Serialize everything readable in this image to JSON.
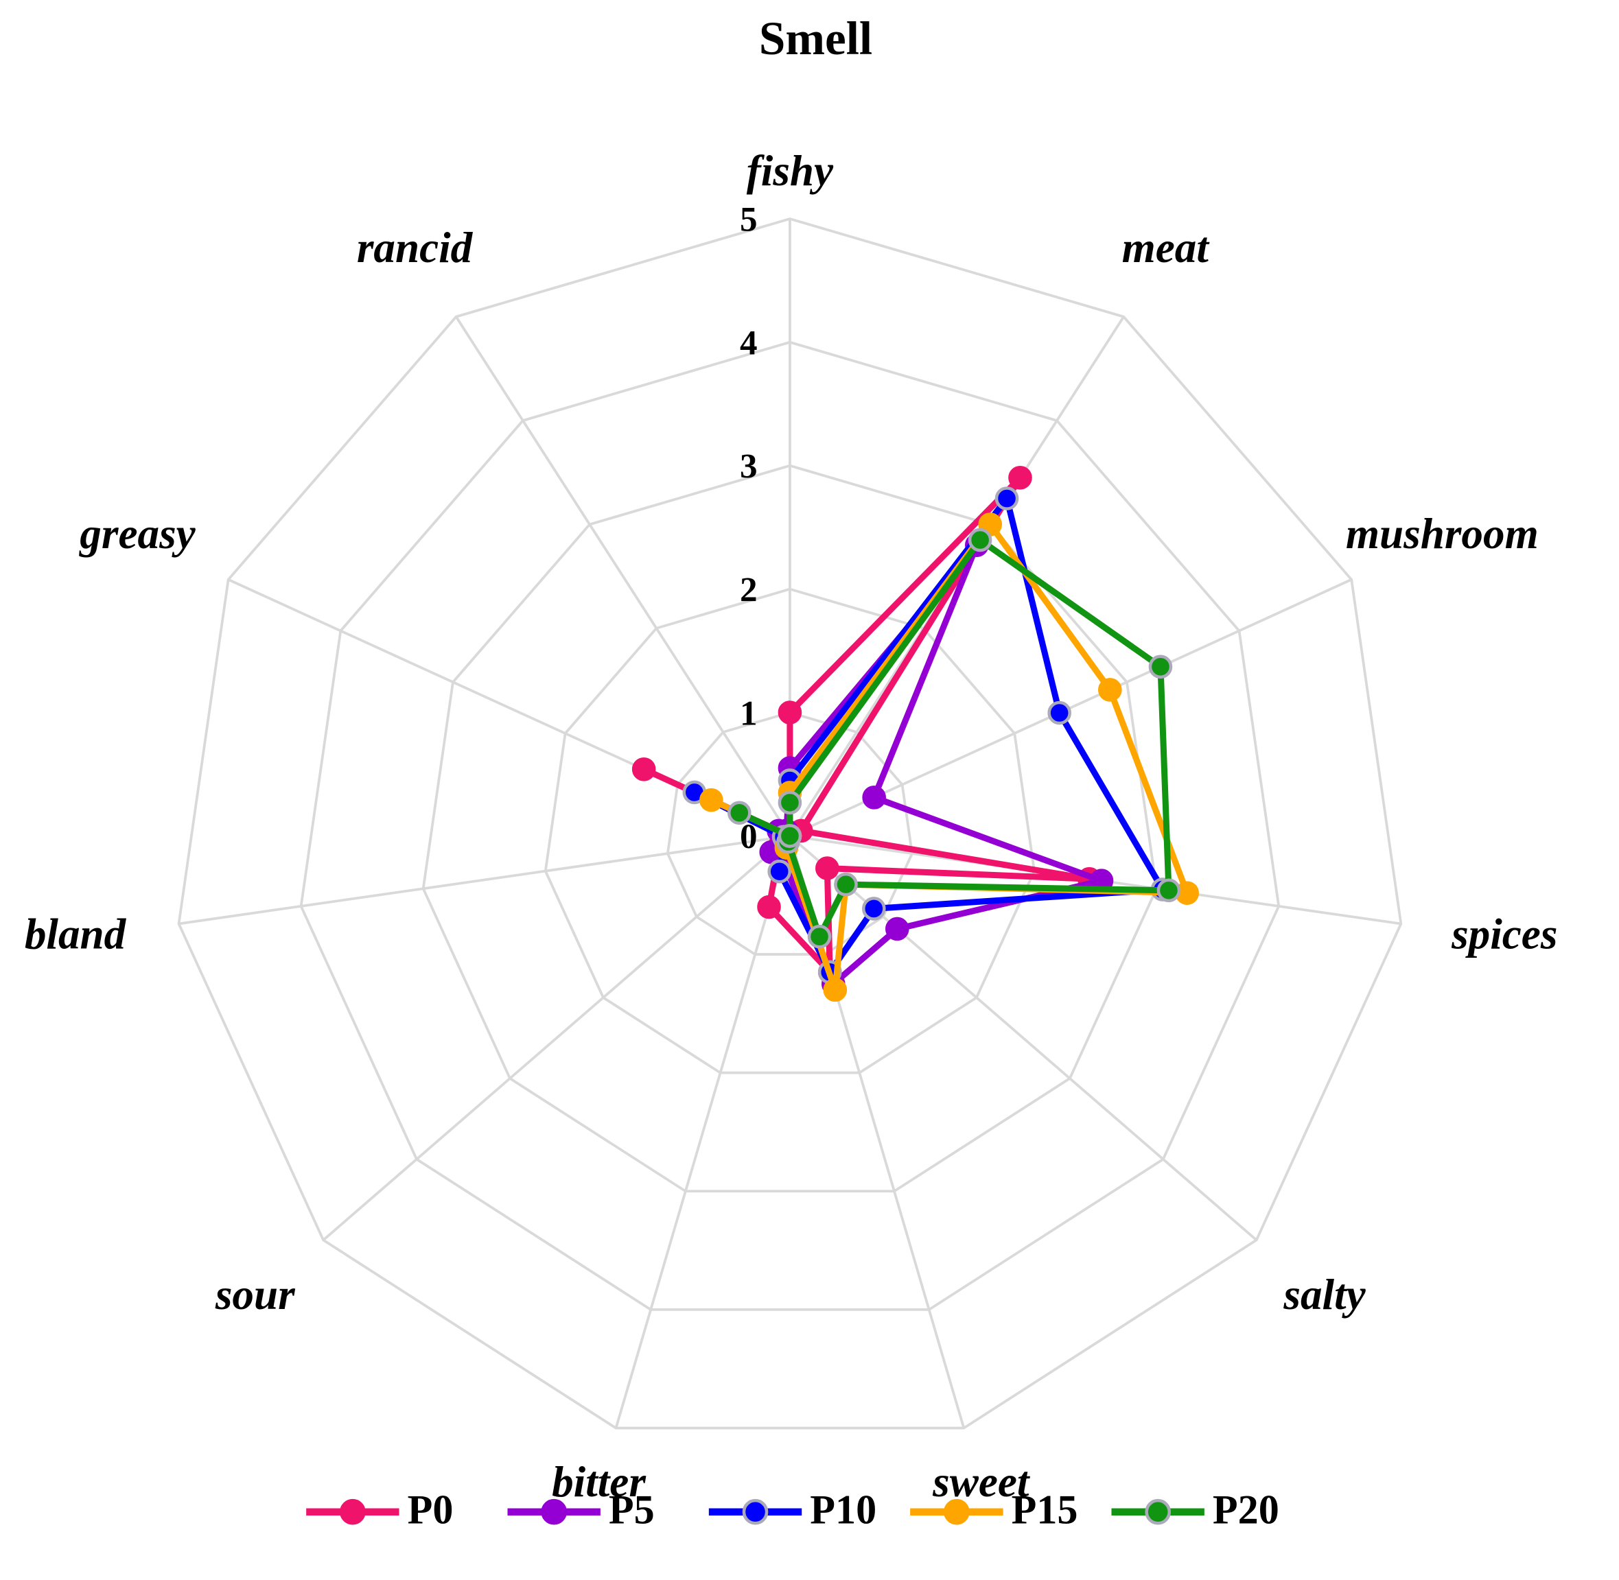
{
  "chart_data": {
    "type": "radar",
    "title": "Smell",
    "categories": [
      "fishy",
      "meat",
      "mushroom",
      "spices",
      "salty",
      "sweet",
      "bitter",
      "sour",
      "bland",
      "greasy",
      "rancid"
    ],
    "rlim": [
      0,
      5
    ],
    "rticks": [
      0,
      1,
      2,
      3,
      4,
      5
    ],
    "grid": true,
    "legend": "bottom",
    "series": [
      {
        "name": "P0",
        "color": "#f0136b",
        "values": [
          1.0,
          3.45,
          0.1,
          2.45,
          0.4,
          1.15,
          0.6,
          0.1,
          0,
          1.3,
          0
        ]
      },
      {
        "name": "P5",
        "color": "#9400d3",
        "values": [
          0.55,
          2.8,
          0.75,
          2.55,
          1.15,
          1.25,
          0.2,
          0.2,
          0.05,
          0.1,
          0.05
        ]
      },
      {
        "name": "P10",
        "color": "#0000ff",
        "values": [
          0.45,
          3.25,
          2.4,
          3.05,
          0.9,
          1.15,
          0.3,
          0.05,
          0.05,
          0.85,
          0
        ]
      },
      {
        "name": "P15",
        "color": "#ffa500",
        "values": [
          0.35,
          3.0,
          2.85,
          3.25,
          0.6,
          1.3,
          0.1,
          0,
          0,
          0.7,
          0
        ]
      },
      {
        "name": "P20",
        "color": "#119411",
        "values": [
          0.27,
          2.85,
          3.3,
          3.1,
          0.6,
          0.85,
          0.05,
          0,
          0,
          0.45,
          0
        ]
      }
    ]
  }
}
